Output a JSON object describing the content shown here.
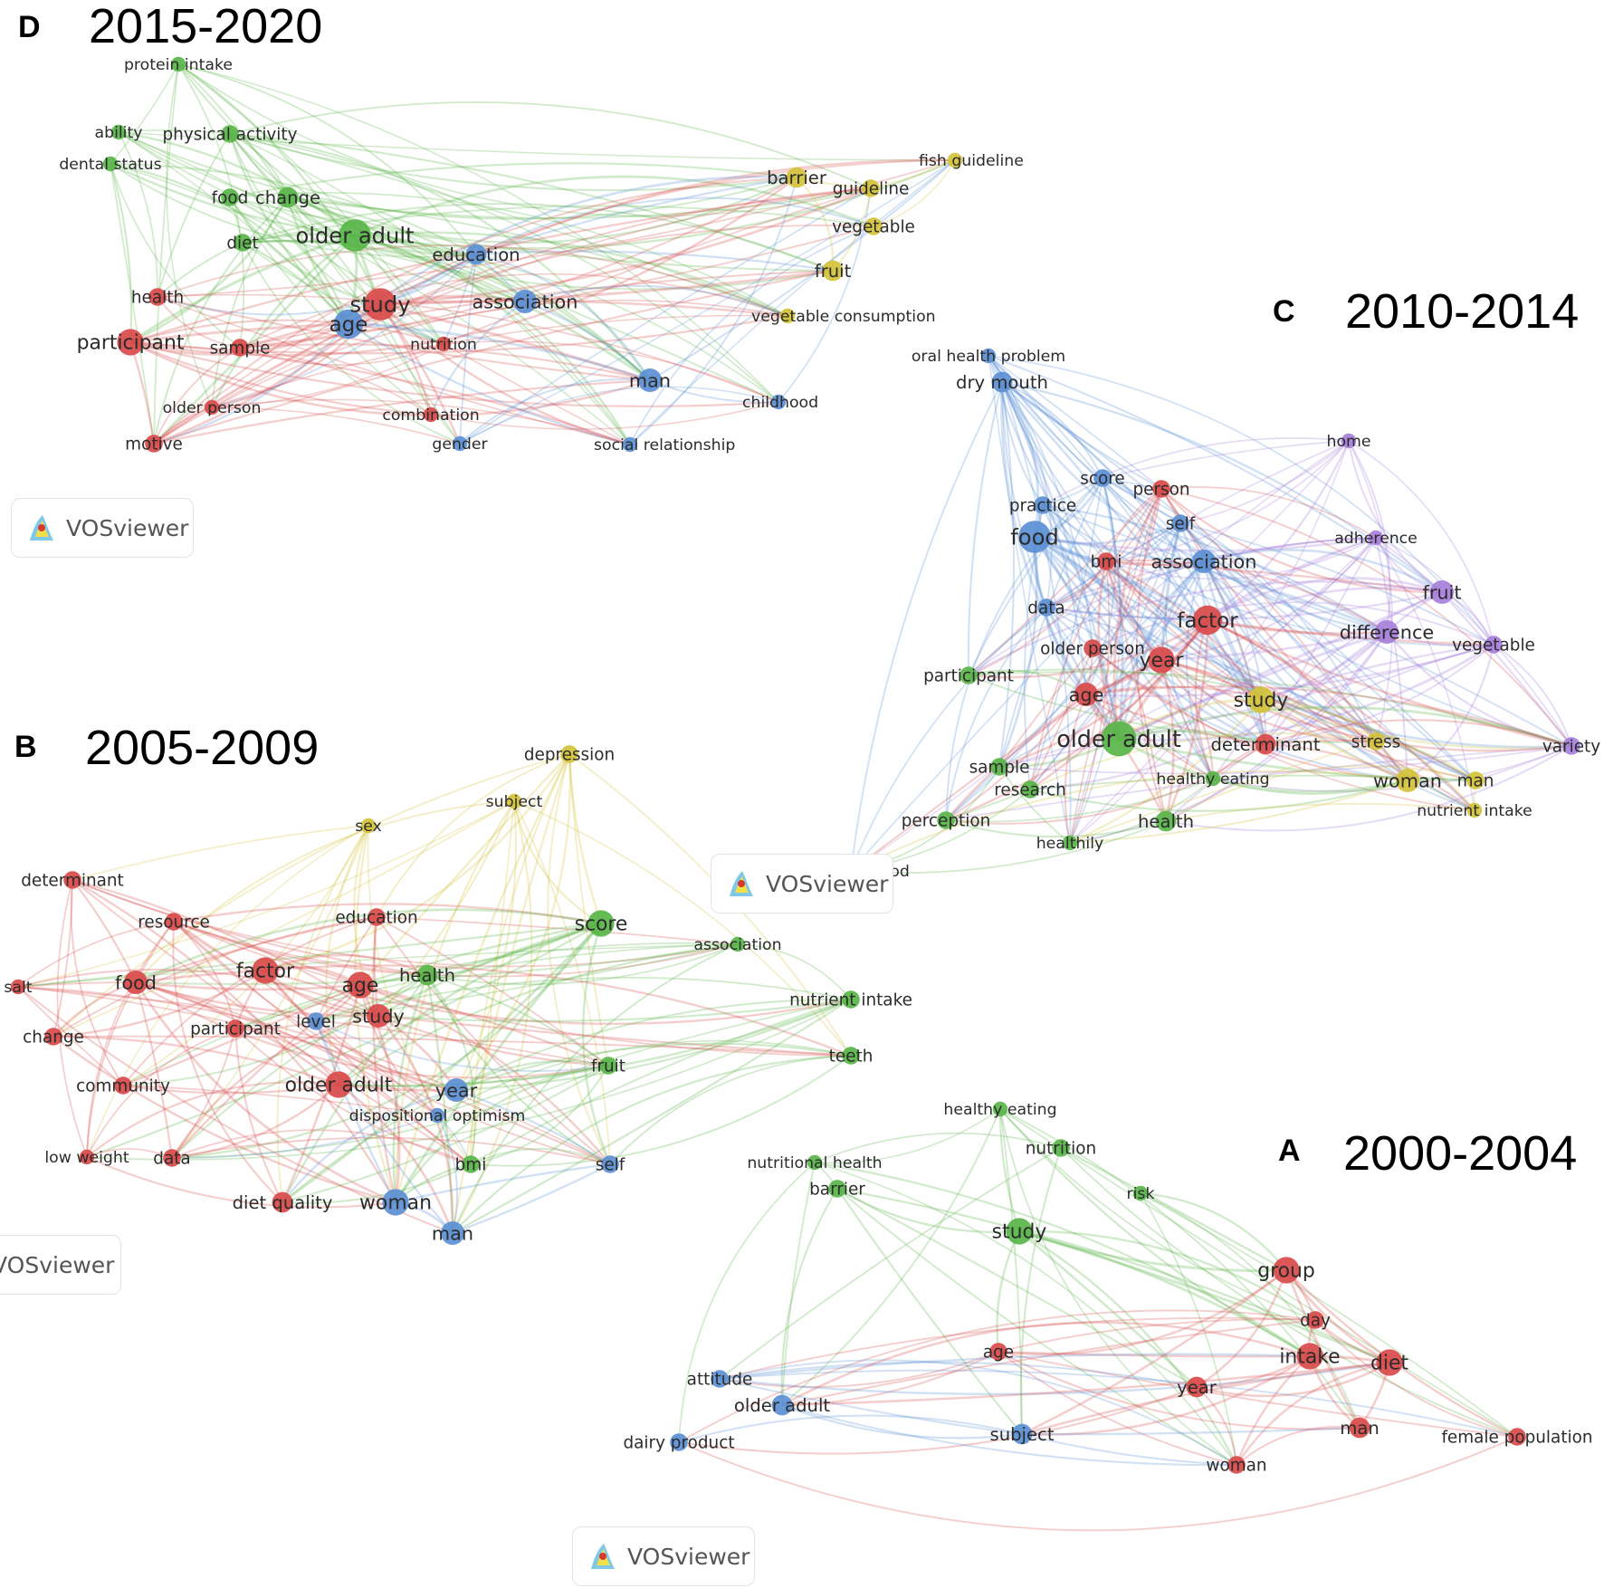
{
  "figure": {
    "panels": [
      {
        "id": "D",
        "letter": "D",
        "period": "2015-2020",
        "clusters": {
          "red": "#d94a4a",
          "green": "#58b548",
          "blue": "#5b8fd4",
          "yellow": "#d3c23a"
        },
        "nodes": [
          {
            "label": "protein intake",
            "cluster": "green",
            "weight": 1
          },
          {
            "label": "ability",
            "cluster": "green",
            "weight": 1
          },
          {
            "label": "physical activity",
            "cluster": "green",
            "weight": 1.5
          },
          {
            "label": "dental status",
            "cluster": "green",
            "weight": 1
          },
          {
            "label": "food",
            "cluster": "green",
            "weight": 1.5
          },
          {
            "label": "change",
            "cluster": "green",
            "weight": 2
          },
          {
            "label": "diet",
            "cluster": "green",
            "weight": 1.5
          },
          {
            "label": "older adult",
            "cluster": "green",
            "weight": 4
          },
          {
            "label": "education",
            "cluster": "blue",
            "weight": 2
          },
          {
            "label": "health",
            "cluster": "red",
            "weight": 1.5
          },
          {
            "label": "study",
            "cluster": "red",
            "weight": 4
          },
          {
            "label": "participant",
            "cluster": "red",
            "weight": 3
          },
          {
            "label": "sample",
            "cluster": "red",
            "weight": 1.5
          },
          {
            "label": "age",
            "cluster": "blue",
            "weight": 3.5
          },
          {
            "label": "nutrition",
            "cluster": "red",
            "weight": 1
          },
          {
            "label": "association",
            "cluster": "blue",
            "weight": 2.5
          },
          {
            "label": "older person",
            "cluster": "red",
            "weight": 1
          },
          {
            "label": "combination",
            "cluster": "red",
            "weight": 1
          },
          {
            "label": "motive",
            "cluster": "red",
            "weight": 1.5
          },
          {
            "label": "gender",
            "cluster": "blue",
            "weight": 1
          },
          {
            "label": "social relationship",
            "cluster": "blue",
            "weight": 1
          },
          {
            "label": "man",
            "cluster": "blue",
            "weight": 2.5
          },
          {
            "label": "childhood",
            "cluster": "blue",
            "weight": 1
          },
          {
            "label": "barrier",
            "cluster": "yellow",
            "weight": 2
          },
          {
            "label": "guideline",
            "cluster": "yellow",
            "weight": 1.5
          },
          {
            "label": "fish guideline",
            "cluster": "yellow",
            "weight": 1
          },
          {
            "label": "vegetable",
            "cluster": "yellow",
            "weight": 1.5
          },
          {
            "label": "fruit",
            "cluster": "yellow",
            "weight": 2
          },
          {
            "label": "vegetable consumption",
            "cluster": "yellow",
            "weight": 1
          }
        ]
      },
      {
        "id": "C",
        "letter": "C",
        "period": "2010-2014",
        "clusters": {
          "red": "#d94a4a",
          "green": "#58b548",
          "blue": "#5b8fd4",
          "yellow": "#d3c23a",
          "purple": "#a77fdb"
        },
        "nodes": [
          {
            "label": "oral health problem",
            "cluster": "blue",
            "weight": 1
          },
          {
            "label": "dry mouth",
            "cluster": "blue",
            "weight": 2
          },
          {
            "label": "home",
            "cluster": "purple",
            "weight": 1
          },
          {
            "label": "score",
            "cluster": "blue",
            "weight": 1.5
          },
          {
            "label": "person",
            "cluster": "red",
            "weight": 1.5
          },
          {
            "label": "practice",
            "cluster": "blue",
            "weight": 1.5
          },
          {
            "label": "self",
            "cluster": "blue",
            "weight": 1.5
          },
          {
            "label": "adherence",
            "cluster": "purple",
            "weight": 1
          },
          {
            "label": "food",
            "cluster": "blue",
            "weight": 4
          },
          {
            "label": "bmi",
            "cluster": "red",
            "weight": 1.5
          },
          {
            "label": "association",
            "cluster": "blue",
            "weight": 2.5
          },
          {
            "label": "fruit",
            "cluster": "purple",
            "weight": 2.5
          },
          {
            "label": "data",
            "cluster": "blue",
            "weight": 1.5
          },
          {
            "label": "factor",
            "cluster": "red",
            "weight": 3.5
          },
          {
            "label": "difference",
            "cluster": "purple",
            "weight": 2.5
          },
          {
            "label": "vegetable",
            "cluster": "purple",
            "weight": 1.5
          },
          {
            "label": "older person",
            "cluster": "red",
            "weight": 1.5
          },
          {
            "label": "year",
            "cluster": "red",
            "weight": 3
          },
          {
            "label": "participant",
            "cluster": "green",
            "weight": 1.5
          },
          {
            "label": "age",
            "cluster": "red",
            "weight": 2.5
          },
          {
            "label": "study",
            "cluster": "yellow",
            "weight": 3
          },
          {
            "label": "older adult",
            "cluster": "green",
            "weight": 4.5
          },
          {
            "label": "determinant",
            "cluster": "red",
            "weight": 2
          },
          {
            "label": "stress",
            "cluster": "yellow",
            "weight": 1.5
          },
          {
            "label": "variety",
            "cluster": "purple",
            "weight": 1.5
          },
          {
            "label": "sample",
            "cluster": "green",
            "weight": 1.5
          },
          {
            "label": "healthy eating",
            "cluster": "green",
            "weight": 1
          },
          {
            "label": "research",
            "cluster": "green",
            "weight": 1.5
          },
          {
            "label": "woman",
            "cluster": "yellow",
            "weight": 2.5
          },
          {
            "label": "man",
            "cluster": "yellow",
            "weight": 1.5
          },
          {
            "label": "nutrient intake",
            "cluster": "yellow",
            "weight": 1
          },
          {
            "label": "perception",
            "cluster": "green",
            "weight": 1.5
          },
          {
            "label": "health",
            "cluster": "green",
            "weight": 2
          },
          {
            "label": "healthily",
            "cluster": "green",
            "weight": 1
          },
          {
            "label": "functional food",
            "cluster": "green",
            "weight": 1
          }
        ]
      },
      {
        "id": "B",
        "letter": "B",
        "period": "2005-2009",
        "clusters": {
          "red": "#d94a4a",
          "green": "#58b548",
          "blue": "#5b8fd4",
          "yellow": "#d3c23a"
        },
        "nodes": [
          {
            "label": "depression",
            "cluster": "yellow",
            "weight": 1.5
          },
          {
            "label": "subject",
            "cluster": "yellow",
            "weight": 1
          },
          {
            "label": "sex",
            "cluster": "yellow",
            "weight": 1
          },
          {
            "label": "determinant",
            "cluster": "red",
            "weight": 1.5
          },
          {
            "label": "resource",
            "cluster": "red",
            "weight": 1.5
          },
          {
            "label": "education",
            "cluster": "red",
            "weight": 1.5
          },
          {
            "label": "score",
            "cluster": "green",
            "weight": 3
          },
          {
            "label": "association",
            "cluster": "green",
            "weight": 1
          },
          {
            "label": "food",
            "cluster": "red",
            "weight": 2.5
          },
          {
            "label": "factor",
            "cluster": "red",
            "weight": 3
          },
          {
            "label": "age",
            "cluster": "red",
            "weight": 3
          },
          {
            "label": "health",
            "cluster": "green",
            "weight": 2
          },
          {
            "label": "salt",
            "cluster": "red",
            "weight": 1
          },
          {
            "label": "nutrient intake",
            "cluster": "green",
            "weight": 1.5
          },
          {
            "label": "study",
            "cluster": "red",
            "weight": 2.5
          },
          {
            "label": "participant",
            "cluster": "red",
            "weight": 1.5
          },
          {
            "label": "level",
            "cluster": "blue",
            "weight": 1.5
          },
          {
            "label": "change",
            "cluster": "red",
            "weight": 1.5
          },
          {
            "label": "teeth",
            "cluster": "green",
            "weight": 1.5
          },
          {
            "label": "fruit",
            "cluster": "green",
            "weight": 1.5
          },
          {
            "label": "community",
            "cluster": "red",
            "weight": 1.5
          },
          {
            "label": "older adult",
            "cluster": "red",
            "weight": 3
          },
          {
            "label": "year",
            "cluster": "blue",
            "weight": 2.5
          },
          {
            "label": "dispositional optimism",
            "cluster": "blue",
            "weight": 1
          },
          {
            "label": "low weight",
            "cluster": "red",
            "weight": 1
          },
          {
            "label": "data",
            "cluster": "red",
            "weight": 1.5
          },
          {
            "label": "bmi",
            "cluster": "green",
            "weight": 1.5
          },
          {
            "label": "self",
            "cluster": "blue",
            "weight": 1.5
          },
          {
            "label": "diet quality",
            "cluster": "red",
            "weight": 2
          },
          {
            "label": "woman",
            "cluster": "blue",
            "weight": 3
          },
          {
            "label": "man",
            "cluster": "blue",
            "weight": 2.5
          }
        ]
      },
      {
        "id": "A",
        "letter": "A",
        "period": "2000-2004",
        "clusters": {
          "red": "#d94a4a",
          "green": "#58b548",
          "blue": "#5b8fd4"
        },
        "nodes": [
          {
            "label": "healthy eating",
            "cluster": "green",
            "weight": 1
          },
          {
            "label": "nutrition",
            "cluster": "green",
            "weight": 1.5
          },
          {
            "label": "nutritional health",
            "cluster": "green",
            "weight": 1
          },
          {
            "label": "barrier",
            "cluster": "green",
            "weight": 1.5
          },
          {
            "label": "risk",
            "cluster": "green",
            "weight": 1
          },
          {
            "label": "study",
            "cluster": "green",
            "weight": 3
          },
          {
            "label": "group",
            "cluster": "red",
            "weight": 3
          },
          {
            "label": "day",
            "cluster": "red",
            "weight": 1.5
          },
          {
            "label": "age",
            "cluster": "red",
            "weight": 1.5
          },
          {
            "label": "attitude",
            "cluster": "blue",
            "weight": 1.5
          },
          {
            "label": "intake",
            "cluster": "red",
            "weight": 3
          },
          {
            "label": "diet",
            "cluster": "red",
            "weight": 3
          },
          {
            "label": "year",
            "cluster": "red",
            "weight": 2
          },
          {
            "label": "older adult",
            "cluster": "blue",
            "weight": 2
          },
          {
            "label": "subject",
            "cluster": "blue",
            "weight": 2
          },
          {
            "label": "man",
            "cluster": "red",
            "weight": 2
          },
          {
            "label": "female population",
            "cluster": "red",
            "weight": 1.5
          },
          {
            "label": "dairy product",
            "cluster": "blue",
            "weight": 1.5
          },
          {
            "label": "woman",
            "cluster": "red",
            "weight": 1.5
          }
        ]
      }
    ],
    "watermarks": [
      {
        "text": "VOSviewer"
      },
      {
        "text": "VOSviewer"
      },
      {
        "text": "VOSviewer"
      },
      {
        "text": "VOSviewer"
      }
    ]
  }
}
